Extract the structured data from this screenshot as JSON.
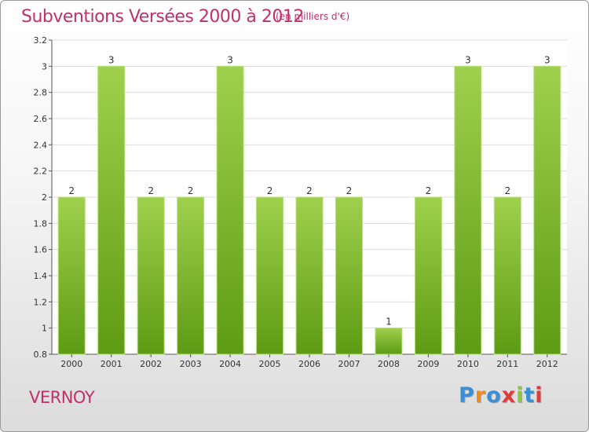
{
  "header": {
    "title": "Subventions Versées 2000 à 2012",
    "subtitle": "(en milliers d'€)"
  },
  "commune": "VERNOY",
  "logo": {
    "text": "Proxiti",
    "letter_colors": [
      "#3a8fd6",
      "#f08a1c",
      "#3a8fd6",
      "#e03a3a",
      "#8cc63f",
      "#3a8fd6",
      "#e03a3a"
    ]
  },
  "colors": {
    "title": "#c0306a",
    "bar_light": "#9fd04e",
    "bar_dark": "#5e9b14",
    "grid": "#dddddd"
  },
  "chart_data": {
    "type": "bar",
    "categories": [
      "2000",
      "2001",
      "2002",
      "2003",
      "2004",
      "2005",
      "2006",
      "2007",
      "2008",
      "2009",
      "2010",
      "2011",
      "2012"
    ],
    "values": [
      2,
      3,
      2,
      2,
      3,
      2,
      2,
      2,
      1,
      2,
      3,
      2,
      3
    ],
    "data_labels": [
      "2",
      "3",
      "2",
      "2",
      "3",
      "2",
      "2",
      "2",
      "1",
      "2",
      "3",
      "2",
      "3"
    ],
    "yticks": [
      0.8,
      1,
      1.2,
      1.4,
      1.6,
      1.8,
      2,
      2.2,
      2.4,
      2.6,
      2.8,
      3,
      3.2
    ],
    "ytick_labels": [
      "0.8",
      "1",
      "1.2",
      "1.4",
      "1.6",
      "1.8",
      "2",
      "2.2",
      "2.4",
      "2.6",
      "2.8",
      "3",
      "3.2"
    ],
    "ylim": [
      0.8,
      3.2
    ],
    "title": "Subventions Versées 2000 à 2012",
    "xlabel": "",
    "ylabel": "",
    "grid": true,
    "legend": "none"
  }
}
